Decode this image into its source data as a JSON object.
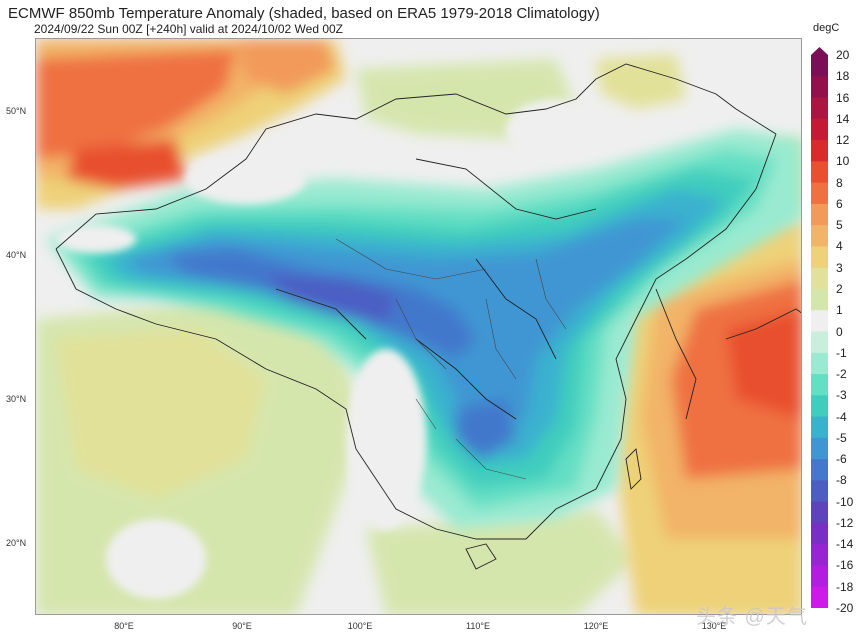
{
  "header": {
    "title": "ECMWF 850mb Temperature Anomaly (shaded, based on ERA5 1979-2018 Climatology)",
    "subtitle": "2024/09/22 Sun 00Z [+240h] valid at 2024/10/02 Wed 00Z"
  },
  "map": {
    "lat_labels": [
      "50°N",
      "40°N",
      "30°N",
      "20°N"
    ],
    "lon_labels": [
      "80°E",
      "90°E",
      "100°E",
      "110°E",
      "120°E",
      "130°E"
    ],
    "lat_values": [
      50,
      40,
      30,
      20
    ],
    "lon_values": [
      80,
      90,
      100,
      110,
      120,
      130
    ],
    "extent": {
      "lon_min": 72.5,
      "lon_max": 137.5,
      "lat_min": 15,
      "lat_max": 55
    }
  },
  "colorbar": {
    "unit": "degC",
    "ticks": [
      "20",
      "18",
      "16",
      "14",
      "12",
      "10",
      "8",
      "6",
      "5",
      "4",
      "3",
      "2",
      "1",
      "0",
      "-1",
      "-2",
      "-3",
      "-4",
      "-5",
      "-6",
      "-8",
      "-10",
      "-12",
      "-14",
      "-16",
      "-18",
      "-20"
    ],
    "colors": [
      "#7b0f57",
      "#93104d",
      "#ab1541",
      "#c41a35",
      "#d92b2b",
      "#e8502f",
      "#ef7142",
      "#f29a5a",
      "#f2b468",
      "#eed178",
      "#e2e199",
      "#d5e6ad",
      "#efefef",
      "#c9efdc",
      "#99ead0",
      "#63dfc4",
      "#3fcdbd",
      "#3ab1cf",
      "#3f96d3",
      "#4378cc",
      "#4c5ec4",
      "#5e43bd",
      "#7a2fc4",
      "#9725d2",
      "#b31ddf",
      "#cd1ae9"
    ]
  },
  "watermark": "头条 @天气"
}
